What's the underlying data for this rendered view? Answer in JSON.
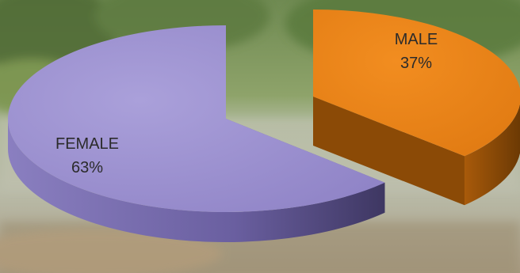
{
  "chart_data": {
    "type": "pie",
    "slices": [
      {
        "label": "FEMALE",
        "percent_label": "63%",
        "value": 63,
        "color": "#9b8fcf",
        "side_color": "#5f5590"
      },
      {
        "label": "MALE",
        "percent_label": "37%",
        "value": 37,
        "color": "#e88118",
        "side_color": "#8b4a06"
      }
    ],
    "style": "3d-exploded",
    "background": "blurred outdoor photo"
  }
}
